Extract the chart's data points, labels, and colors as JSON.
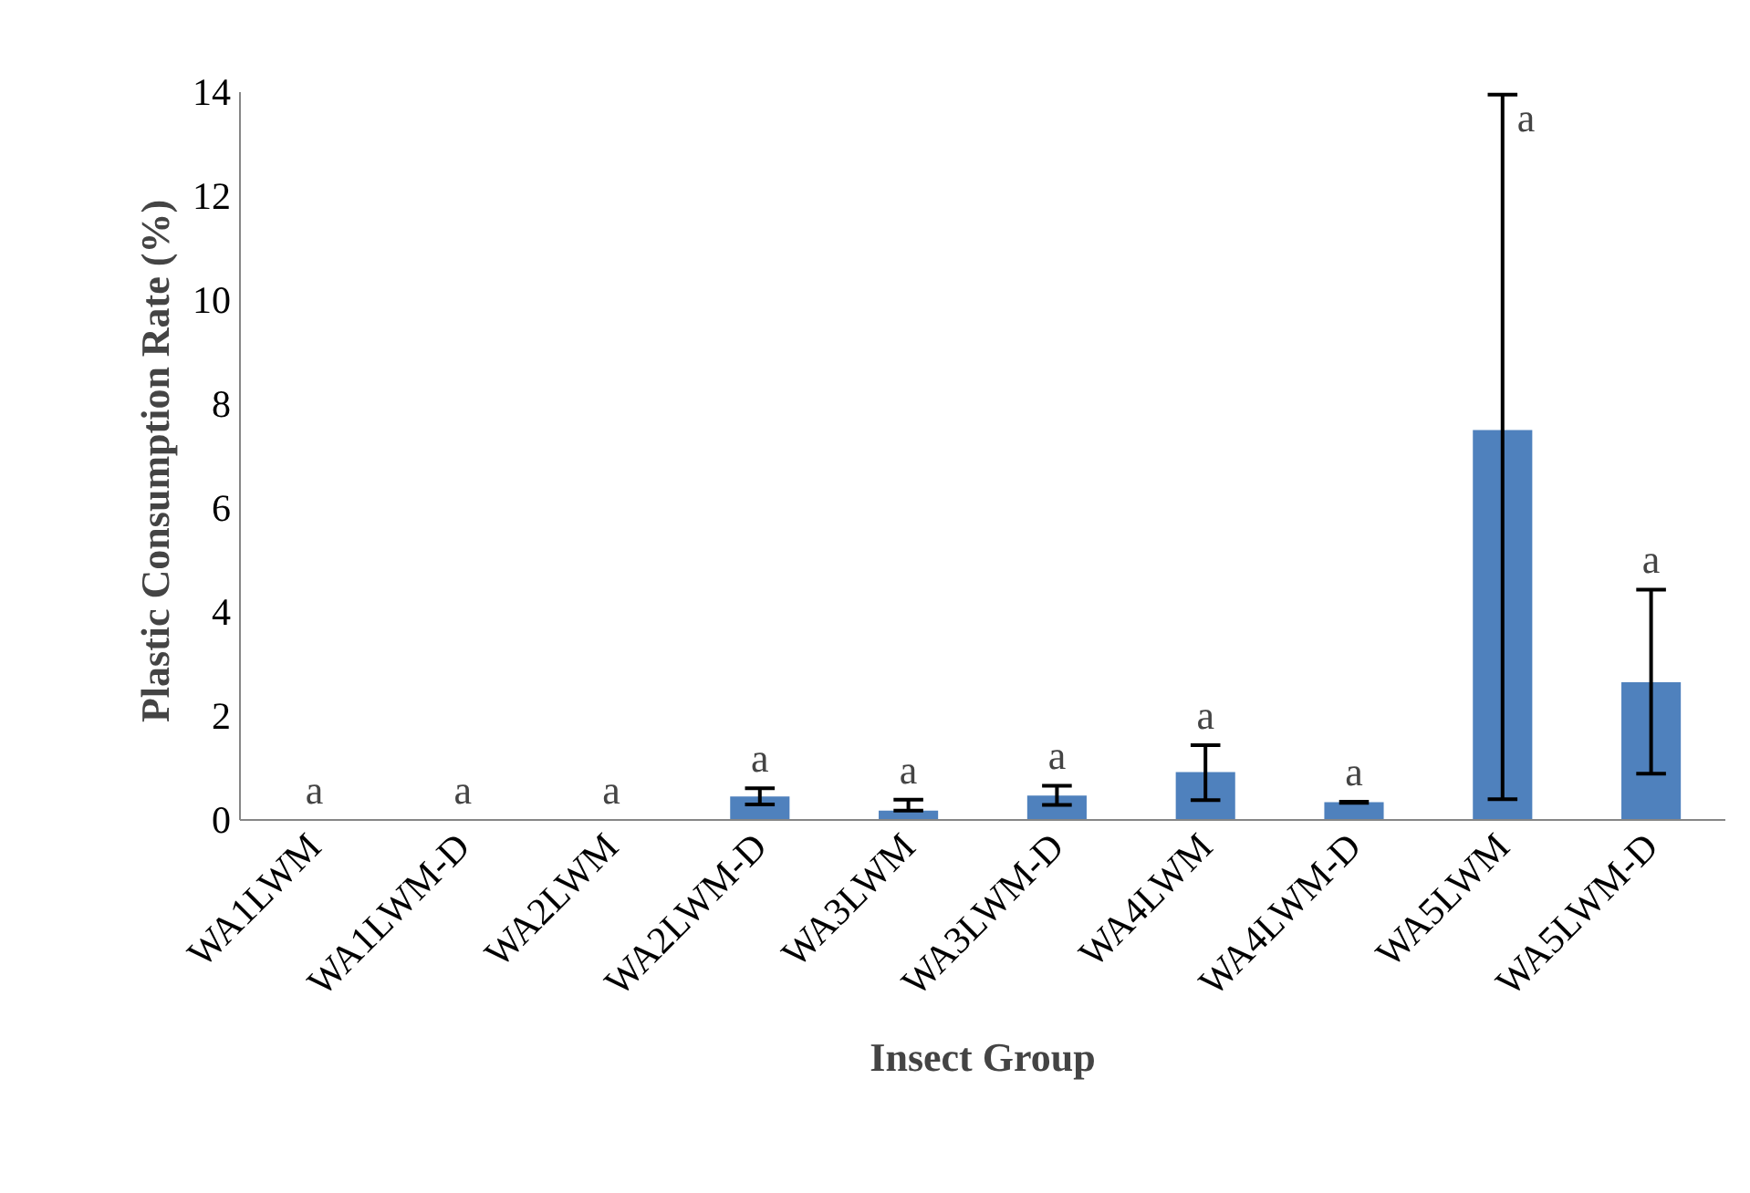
{
  "chart_data": {
    "type": "bar",
    "xlabel": "Insect Group",
    "ylabel": "Plastic Consumption  Rate (%)",
    "categories": [
      "WA1LWM",
      "WA1LWM-D",
      "WA2LWM",
      "WA2LWM-D",
      "WA3LWM",
      "WA3LWM-D",
      "WA4LWM",
      "WA4LWM-D",
      "WA5LWM",
      "WA5LWM-D"
    ],
    "values": [
      0,
      0,
      0,
      0.45,
      0.18,
      0.47,
      0.92,
      0.34,
      7.5,
      2.65
    ],
    "errors": [
      null,
      null,
      null,
      [
        0.3,
        0.61
      ],
      [
        0.18,
        0.39
      ],
      [
        0.29,
        0.66
      ],
      [
        0.38,
        1.44
      ],
      [
        0.33,
        0.35
      ],
      [
        0.4,
        13.95
      ],
      [
        0.89,
        4.43
      ]
    ],
    "color": "#4f81bd",
    "ylim": [
      0,
      14
    ],
    "yticks": [
      0,
      2,
      4,
      6,
      8,
      10,
      12,
      14
    ],
    "grid": false,
    "annotations": [
      "a",
      "a",
      "a",
      "a",
      "a",
      "a",
      "a",
      "a",
      "a",
      "a"
    ]
  }
}
